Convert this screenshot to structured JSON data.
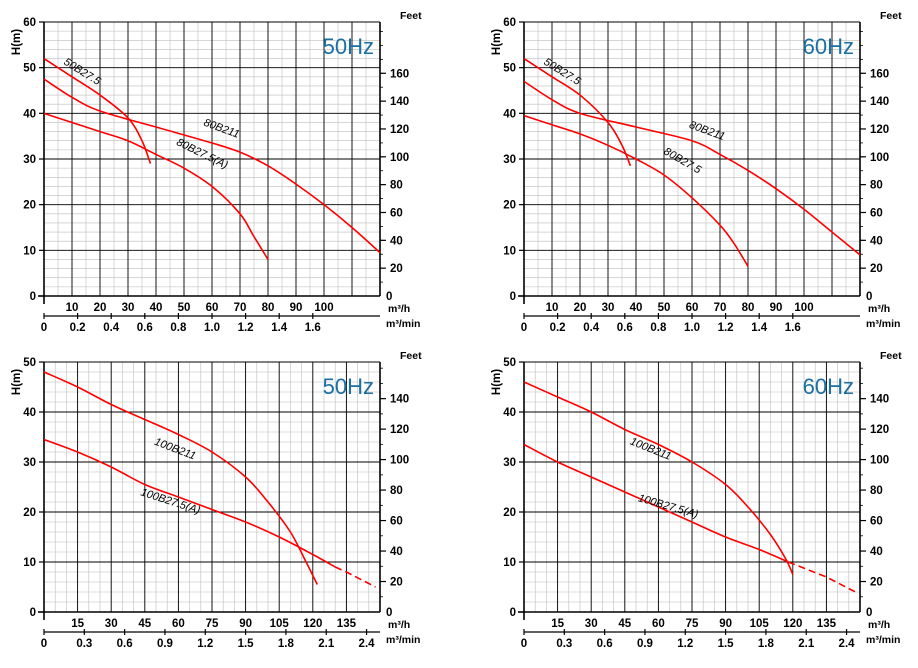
{
  "colors": {
    "curve": "#ff0000",
    "freq": "#1a6fa3",
    "grid_major": "#000000",
    "grid_minor": "#bdbdbd"
  },
  "chart_data": [
    {
      "type": "line",
      "freq_label": "50Hz",
      "ylabel": "H(m)",
      "ylim": [
        0,
        60
      ],
      "y_ticks": [
        "0",
        "10",
        "20",
        "30",
        "40",
        "50",
        "60"
      ],
      "right_label": "Feet",
      "feet_ticks": [
        "20",
        "40",
        "60",
        "80",
        "100",
        "120",
        "140",
        "160"
      ],
      "x_ticks": [
        "10",
        "20",
        "30",
        "40",
        "50",
        "60",
        "70",
        "80",
        "90",
        "100"
      ],
      "x_unit": "m³/h",
      "x2_ticks": [
        "0",
        "0.2",
        "0.4",
        "0.6",
        "0.8",
        "1.0",
        "1.2",
        "1.4",
        "1.6"
      ],
      "x2_unit": "m³/min",
      "series": [
        {
          "name": "50B27.5",
          "x": [
            0,
            10,
            20,
            30,
            35,
            38
          ],
          "y": [
            52,
            48,
            44,
            39,
            34,
            29
          ]
        },
        {
          "name": "80B211",
          "x": [
            0,
            10,
            20,
            40,
            60,
            70,
            80,
            90,
            100,
            110,
            120
          ],
          "y": [
            47.5,
            43.5,
            40.5,
            37,
            33.5,
            31.5,
            28.5,
            24.5,
            20,
            15,
            9.5
          ]
        },
        {
          "name": "80B27.5(A)",
          "x": [
            0,
            10,
            20,
            30,
            40,
            50,
            60,
            70,
            75,
            80
          ],
          "y": [
            40,
            38,
            36,
            34,
            31,
            28,
            24,
            18,
            13,
            8
          ]
        }
      ]
    },
    {
      "type": "line",
      "freq_label": "60Hz",
      "ylabel": "H(m)",
      "ylim": [
        0,
        60
      ],
      "y_ticks": [
        "0",
        "10",
        "20",
        "30",
        "40",
        "50",
        "60"
      ],
      "right_label": "Feet",
      "feet_ticks": [
        "20",
        "40",
        "60",
        "80",
        "100",
        "120",
        "140",
        "160"
      ],
      "x_ticks": [
        "10",
        "20",
        "30",
        "40",
        "50",
        "60",
        "70",
        "80",
        "90",
        "100"
      ],
      "x2_ticks": [
        "0",
        "0.2",
        "0.4",
        "0.6",
        "0.8",
        "1.0",
        "1.2",
        "1.4",
        "1.6"
      ],
      "x_unit": "m³/h",
      "x2_unit": "m³/min",
      "series": [
        {
          "name": "50B27.5",
          "x": [
            0,
            10,
            20,
            30,
            35,
            38
          ],
          "y": [
            52,
            48,
            44,
            38,
            33,
            28.5
          ]
        },
        {
          "name": "80B211",
          "x": [
            0,
            10,
            20,
            40,
            60,
            70,
            80,
            90,
            100,
            110,
            120
          ],
          "y": [
            47,
            43,
            40,
            37,
            34,
            31,
            27.5,
            23.5,
            19,
            14,
            9
          ]
        },
        {
          "name": "80B27.5",
          "x": [
            0,
            10,
            20,
            30,
            40,
            50,
            60,
            70,
            75,
            80
          ],
          "y": [
            39.5,
            37.5,
            35.5,
            33,
            30,
            26.5,
            21.5,
            15.5,
            11.5,
            6.5
          ]
        }
      ]
    },
    {
      "type": "line",
      "freq_label": "50Hz",
      "ylabel": "H(m)",
      "ylim": [
        0,
        50
      ],
      "y_ticks": [
        "0",
        "10",
        "20",
        "30",
        "40",
        "50"
      ],
      "right_label": "Feet",
      "feet_ticks": [
        "20",
        "40",
        "60",
        "80",
        "100",
        "120",
        "140"
      ],
      "x_ticks": [
        "15",
        "30",
        "45",
        "60",
        "75",
        "90",
        "105",
        "120",
        "135"
      ],
      "x_unit": "m³/h",
      "x2_ticks": [
        "0",
        "0.3",
        "0.6",
        "0.9",
        "1.2",
        "1.5",
        "1.8",
        "2.1",
        "2.4"
      ],
      "x2_unit": "m³/min",
      "series": [
        {
          "name": "100B211",
          "x": [
            0,
            15,
            30,
            45,
            60,
            75,
            90,
            100,
            110,
            117,
            122
          ],
          "y": [
            48,
            45,
            41.5,
            38.5,
            35.5,
            32,
            27,
            22,
            16,
            10,
            5.5
          ]
        },
        {
          "name": "100B27.5(A)",
          "x": [
            0,
            15,
            30,
            45,
            60,
            75,
            90,
            105,
            120,
            130
          ],
          "y": [
            34.5,
            32,
            29,
            25.5,
            23,
            20.5,
            18,
            15,
            11.5,
            9
          ],
          "dashed_x": [
            130,
            135,
            148
          ],
          "dashed_y": [
            9,
            8,
            5
          ]
        }
      ]
    },
    {
      "type": "line",
      "freq_label": "60Hz",
      "ylabel": "H(m)",
      "ylim": [
        0,
        50
      ],
      "y_ticks": [
        "0",
        "10",
        "20",
        "30",
        "40",
        "50"
      ],
      "right_label": "Feet",
      "feet_ticks": [
        "20",
        "40",
        "60",
        "80",
        "100",
        "120",
        "140"
      ],
      "x_ticks": [
        "15",
        "30",
        "45",
        "60",
        "75",
        "90",
        "105",
        "120",
        "135"
      ],
      "x_unit": "m³/h",
      "x2_ticks": [
        "0",
        "0.3",
        "0.6",
        "0.9",
        "1.2",
        "1.5",
        "1.8",
        "2.1",
        "2.4"
      ],
      "x2_unit": "m³/min",
      "series": [
        {
          "name": "100B211",
          "x": [
            0,
            15,
            30,
            45,
            60,
            75,
            90,
            100,
            110,
            117,
            120
          ],
          "y": [
            46,
            43,
            40,
            36.5,
            33.5,
            30,
            25.5,
            21,
            15.5,
            10.5,
            7.5
          ]
        },
        {
          "name": "100B27.5(A)",
          "x": [
            0,
            15,
            30,
            45,
            60,
            75,
            90,
            105,
            118
          ],
          "y": [
            33.5,
            30,
            27,
            24,
            21,
            18,
            15,
            12.5,
            10
          ],
          "dashed_x": [
            118,
            135,
            148
          ],
          "dashed_y": [
            10,
            7,
            4
          ]
        }
      ]
    }
  ]
}
